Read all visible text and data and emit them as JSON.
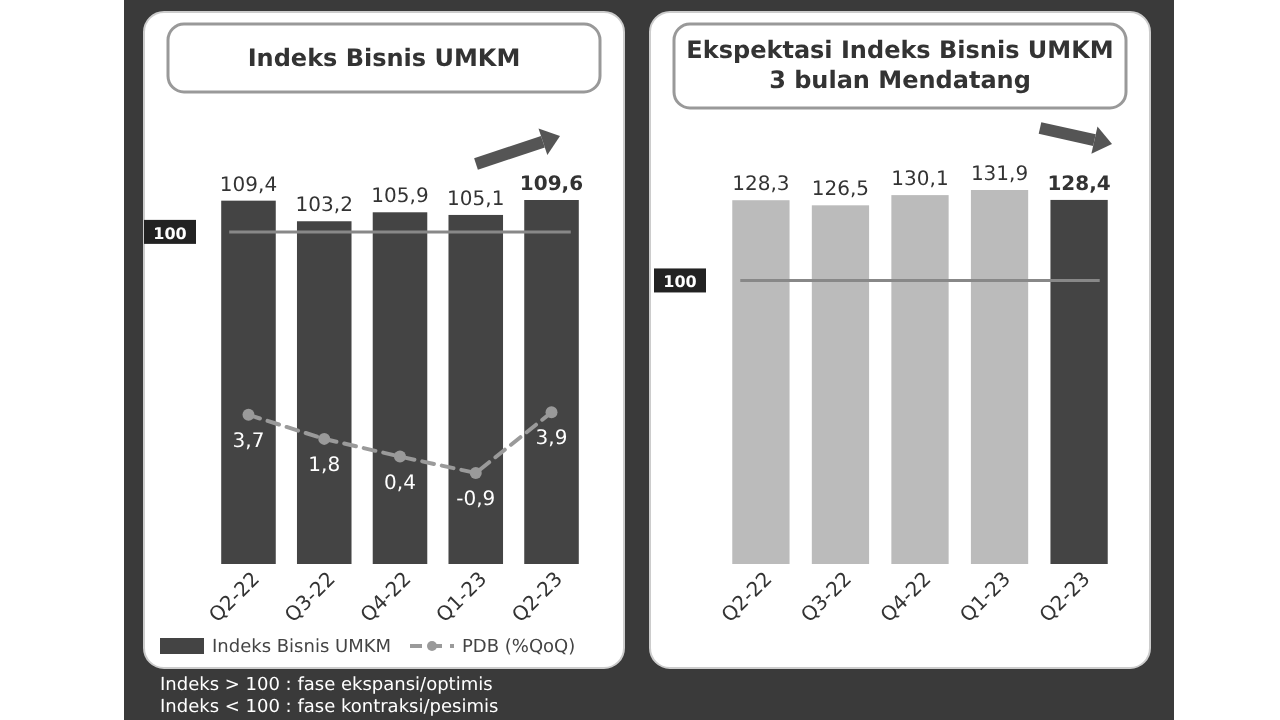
{
  "chart_data": [
    {
      "type": "bar",
      "title": "Indeks Bisnis UMKM",
      "categories": [
        "Q2-22",
        "Q3-22",
        "Q4-22",
        "Q1-23",
        "Q2-23"
      ],
      "series": [
        {
          "name": "Indeks Bisnis UMKM",
          "color": "#444444",
          "values": [
            109.4,
            103.2,
            105.9,
            105.1,
            109.6
          ],
          "value_labels": [
            "109,4",
            "103,2",
            "105,9",
            "105,1",
            "109,6"
          ]
        },
        {
          "name": "PDB (%QoQ)",
          "type": "line",
          "axis": "y2",
          "color": "#9a9a9a",
          "marker": "circle",
          "line_style": "dashed",
          "values": [
            3.7,
            1.8,
            0.4,
            -0.9,
            3.9
          ],
          "value_labels": [
            "3,7",
            "1,8",
            "0,4",
            "-0,9",
            "3,9"
          ]
        }
      ],
      "grid": false,
      "legend": "bottom",
      "ref_lines": [
        {
          "axis": "y",
          "value": 100,
          "label": "100",
          "color": "#888888"
        }
      ],
      "annotations": [
        "Indeks > 100 : fase ekspansi/optimis",
        "Indeks < 100 : fase kontraksi/pesimis"
      ]
    },
    {
      "type": "bar",
      "title": "Ekspektasi Indeks Bisnis UMKM\n3 bulan Mendatang",
      "categories": [
        "Q2-22",
        "Q3-22",
        "Q4-22",
        "Q1-23",
        "Q2-23"
      ],
      "series": [
        {
          "colors": [
            "#bbbbbb",
            "#bbbbbb",
            "#bbbbbb",
            "#bbbbbb",
            "#444444"
          ],
          "values": [
            128.3,
            126.5,
            130.1,
            131.9,
            128.4
          ],
          "value_labels": [
            "128,3",
            "126,5",
            "130,1",
            "131,9",
            "128,4"
          ]
        }
      ],
      "grid": false,
      "ref_lines": [
        {
          "axis": "y",
          "value": 100,
          "label": "100",
          "color": "#888888"
        }
      ]
    }
  ]
}
